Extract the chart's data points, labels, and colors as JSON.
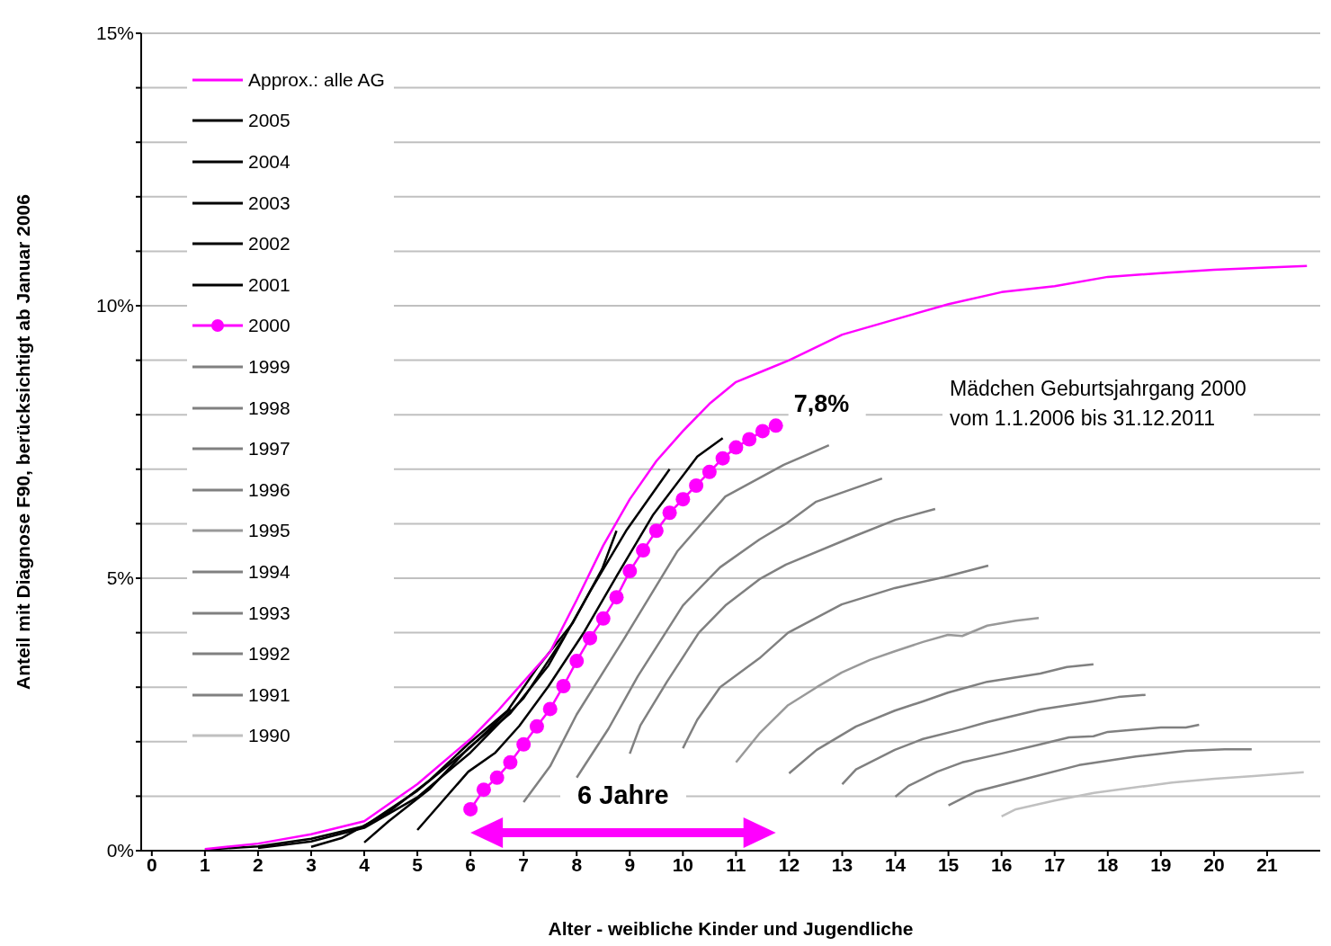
{
  "chart_data": {
    "type": "line",
    "xlabel": "Alter - weibliche Kinder und Jugendliche",
    "ylabel": "Anteil mit Diagnose F90, berücksichtigt ab Januar 2006",
    "xlim": [
      -0.2,
      22
    ],
    "xticks": [
      0,
      1,
      2,
      3,
      4,
      5,
      6,
      7,
      8,
      9,
      10,
      11,
      12,
      13,
      14,
      15,
      16,
      17,
      18,
      19,
      20,
      21
    ],
    "ylim": [
      0,
      15
    ],
    "yticks": [
      {
        "value": 0,
        "label": "0%"
      },
      {
        "value": 1,
        "label": null
      },
      {
        "value": 2,
        "label": null
      },
      {
        "value": 3,
        "label": null
      },
      {
        "value": 4,
        "label": null
      },
      {
        "value": 5,
        "label": "5%"
      },
      {
        "value": 6,
        "label": null
      },
      {
        "value": 7,
        "label": null
      },
      {
        "value": 8,
        "label": null
      },
      {
        "value": 9,
        "label": null
      },
      {
        "value": 10,
        "label": "10%"
      },
      {
        "value": 11,
        "label": null
      },
      {
        "value": 12,
        "label": null
      },
      {
        "value": 13,
        "label": null
      },
      {
        "value": 14,
        "label": null
      },
      {
        "value": 15,
        "label": "15%"
      }
    ],
    "grid": "y",
    "legend": "top left",
    "marker": "none",
    "line_style": "solid",
    "annotations": [
      {
        "text": "7,8%",
        "x": 11.75,
        "y": 7.8
      },
      "6 Jahre",
      "Mädchen Geburtsjahrgang 2000\nvom 1.1.2006 bis 31.12.2011"
    ],
    "series": [
      {
        "name": "Approx.: alle AG",
        "color": "#ff00ff",
        "x": [
          1,
          2,
          3,
          4,
          5,
          6,
          6.5,
          7,
          7.5,
          8,
          8.5,
          9,
          9.5,
          10,
          10.5,
          11,
          11.5,
          12,
          13,
          14,
          15,
          16,
          17,
          18,
          19,
          20,
          21,
          21.75
        ],
        "values": [
          0.03,
          0.13,
          0.3,
          0.54,
          1.22,
          2.05,
          2.55,
          3.1,
          3.65,
          4.6,
          5.6,
          6.45,
          7.15,
          7.7,
          8.2,
          8.6,
          8.8,
          9.0,
          9.47,
          9.75,
          10.03,
          10.25,
          10.36,
          10.53,
          10.6,
          10.66,
          10.7,
          10.73
        ]
      },
      {
        "name": "2005",
        "color": "#000000",
        "x": [
          1,
          2,
          3,
          4,
          5,
          6,
          6.75
        ],
        "values": [
          0.02,
          0.08,
          0.22,
          0.45,
          1.1,
          1.9,
          2.6
        ]
      },
      {
        "name": "2004",
        "color": "#000000",
        "x": [
          2,
          3,
          4,
          5,
          6,
          7,
          7.75
        ],
        "values": [
          0.05,
          0.17,
          0.42,
          0.98,
          1.8,
          2.8,
          3.9
        ]
      },
      {
        "name": "2003",
        "color": "#000000",
        "x": [
          3,
          3.57,
          4.46,
          5.24,
          5.96,
          6.7,
          7.25,
          7.92,
          8.48,
          8.75
        ],
        "values": [
          0.07,
          0.23,
          0.71,
          1.3,
          1.96,
          2.57,
          3.35,
          4.17,
          5.17,
          5.87
        ]
      },
      {
        "name": "2002",
        "color": "#000000",
        "x": [
          4,
          4.46,
          5.24,
          5.96,
          6.75,
          7.47,
          8.26,
          8.93,
          9.75
        ],
        "values": [
          0.15,
          0.54,
          1.14,
          1.88,
          2.52,
          3.4,
          4.77,
          5.87,
          7.0
        ]
      },
      {
        "name": "2001",
        "color": "#000000",
        "x": [
          5,
          5.96,
          6.47,
          6.92,
          7.47,
          8.14,
          8.76,
          9.43,
          10.27,
          10.75
        ],
        "values": [
          0.38,
          1.45,
          1.8,
          2.29,
          3.02,
          4.01,
          5.05,
          6.15,
          7.23,
          7.57
        ]
      },
      {
        "name": "2000",
        "color": "#ff00ff",
        "marker": "circle",
        "x": [
          6,
          6.25,
          6.5,
          6.75,
          7,
          7.25,
          7.5,
          7.75,
          8,
          8.25,
          8.5,
          8.75,
          9,
          9.25,
          9.5,
          9.75,
          10,
          10.25,
          10.5,
          10.75,
          11,
          11.25,
          11.5,
          11.75
        ],
        "values": [
          0.76,
          1.12,
          1.34,
          1.62,
          1.95,
          2.28,
          2.6,
          3.02,
          3.48,
          3.9,
          4.26,
          4.65,
          5.13,
          5.51,
          5.87,
          6.2,
          6.45,
          6.7,
          6.95,
          7.2,
          7.4,
          7.55,
          7.7,
          7.8
        ]
      },
      {
        "name": "1999",
        "color": "#808080",
        "x": [
          7,
          7.5,
          8,
          8.9,
          9.9,
          10.8,
          11.9,
          12.75
        ],
        "values": [
          0.89,
          1.55,
          2.5,
          3.9,
          5.5,
          6.5,
          7.08,
          7.44
        ]
      },
      {
        "name": "1998",
        "color": "#808080",
        "x": [
          8,
          8.6,
          9.15,
          10,
          10.7,
          11.44,
          11.94,
          12.5,
          13.75
        ],
        "values": [
          1.34,
          2.24,
          3.2,
          4.5,
          5.2,
          5.71,
          6.0,
          6.4,
          6.83
        ]
      },
      {
        "name": "1997",
        "color": "#808080",
        "x": [
          9,
          9.2,
          9.7,
          10.3,
          10.8,
          11.44,
          11.94,
          13.25,
          14,
          14.75
        ],
        "values": [
          1.78,
          2.3,
          3.1,
          4.0,
          4.5,
          4.98,
          5.25,
          5.78,
          6.07,
          6.27
        ]
      },
      {
        "name": "1996",
        "color": "#808080",
        "x": [
          10,
          10.27,
          10.7,
          11.44,
          11.98,
          12.99,
          13.99,
          14.92,
          15.75
        ],
        "values": [
          1.88,
          2.4,
          3.0,
          3.53,
          4.0,
          4.52,
          4.82,
          5.02,
          5.23
        ]
      },
      {
        "name": "1995",
        "color": "#999999",
        "x": [
          11,
          11.44,
          11.98,
          12.52,
          12.99,
          13.52,
          13.99,
          14.52,
          14.99,
          15.26,
          15.73,
          16.27,
          16.7
        ],
        "values": [
          1.62,
          2.15,
          2.67,
          3.0,
          3.27,
          3.5,
          3.66,
          3.83,
          3.96,
          3.94,
          4.13,
          4.22,
          4.27
        ]
      },
      {
        "name": "1994",
        "color": "#808080",
        "x": [
          12,
          12.52,
          13.26,
          13.99,
          14.52,
          14.99,
          15.73,
          16.73,
          17.23,
          17.73
        ],
        "values": [
          1.42,
          1.85,
          2.28,
          2.57,
          2.74,
          2.9,
          3.1,
          3.25,
          3.37,
          3.42
        ]
      },
      {
        "name": "1993",
        "color": "#808080",
        "x": [
          13,
          13.26,
          13.99,
          14.52,
          15.26,
          15.73,
          16.73,
          17.73,
          18.2,
          18.71
        ],
        "values": [
          1.22,
          1.49,
          1.85,
          2.05,
          2.23,
          2.36,
          2.59,
          2.74,
          2.82,
          2.86
        ]
      },
      {
        "name": "1992",
        "color": "#808080",
        "x": [
          14,
          14.25,
          14.79,
          15.26,
          15.99,
          16.73,
          17.27,
          17.73,
          18,
          19,
          19.47,
          19.72
        ],
        "values": [
          0.99,
          1.19,
          1.45,
          1.62,
          1.78,
          1.95,
          2.08,
          2.1,
          2.18,
          2.26,
          2.26,
          2.31
        ]
      },
      {
        "name": "1991",
        "color": "#808080",
        "x": [
          15,
          15.53,
          16.46,
          17.46,
          18.53,
          19.47,
          20.2,
          20.71
        ],
        "values": [
          0.83,
          1.09,
          1.32,
          1.57,
          1.73,
          1.83,
          1.86,
          1.86
        ]
      },
      {
        "name": "1990",
        "color": "#c0c0c0",
        "x": [
          16,
          16.27,
          17,
          17.74,
          18.74,
          19.21,
          20.01,
          20.75,
          21.69
        ],
        "values": [
          0.63,
          0.76,
          0.92,
          1.06,
          1.19,
          1.25,
          1.32,
          1.37,
          1.44
        ]
      }
    ]
  }
}
